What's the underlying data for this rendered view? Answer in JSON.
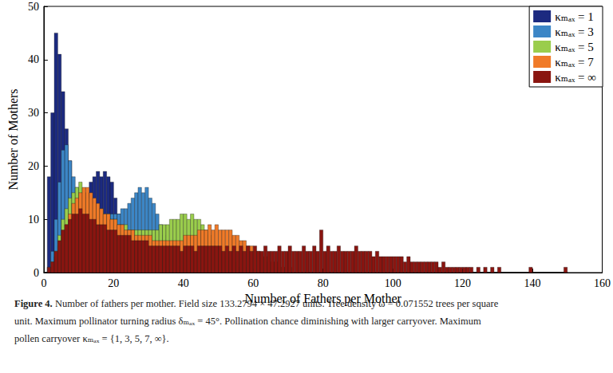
{
  "chart_data": {
    "type": "histogram",
    "x_label": "Number of Fathers per Mother",
    "y_label": "Number of Mothers",
    "caption_label": "Figure 4.",
    "caption": [
      "Number of fathers per mother. Field size 133.2794 × 47.2927 units. Tree density ω = 0.071552 trees per square",
      "unit. Maximum pollinator turning radius δₘₐₓ = 45°. Pollination chance diminishing with larger carryover. Maximum",
      "pollen carryover κₘₐₓ = {1, 3, 5, 7, ∞}."
    ],
    "xlim": [
      0,
      160
    ],
    "xticks": [
      0,
      20,
      40,
      60,
      80,
      100,
      120,
      140,
      160
    ],
    "ylim": [
      0,
      50
    ],
    "yticks": [
      0,
      10,
      20,
      30,
      40,
      50
    ],
    "grid": false,
    "legend": "upper right",
    "bins": [
      0,
      1,
      2,
      3,
      4,
      5,
      6,
      7,
      8,
      9,
      10,
      11,
      12,
      13,
      14,
      15,
      16,
      17,
      18,
      19,
      20,
      21,
      22,
      23,
      24,
      25,
      26,
      27,
      28,
      29,
      30,
      31,
      32,
      33,
      34,
      35,
      36,
      37,
      38,
      39,
      40,
      41,
      42,
      43,
      44,
      45,
      46,
      47,
      48,
      49,
      50,
      51,
      52,
      53,
      54,
      55,
      56,
      57,
      58,
      59,
      60,
      61,
      62,
      63,
      64,
      65,
      66,
      67,
      68,
      69,
      70,
      71,
      72,
      73,
      74,
      75,
      76,
      77,
      78,
      79,
      80,
      81,
      82,
      83,
      84,
      85,
      86,
      87,
      88,
      89,
      90,
      91,
      92,
      93,
      94,
      95,
      96,
      97,
      98,
      99,
      100,
      101,
      102,
      103,
      104,
      105,
      106,
      107,
      108,
      109,
      110,
      111,
      112,
      113,
      114,
      115,
      116,
      117,
      118,
      119,
      120,
      121,
      122,
      123,
      124,
      125,
      126,
      127,
      128,
      129,
      130,
      131,
      132,
      133,
      134,
      135,
      136,
      137,
      138,
      139,
      140,
      141,
      142,
      143,
      144,
      145,
      146,
      147,
      148,
      149,
      150
    ],
    "series": [
      {
        "name": "κₘₐₓ = 1",
        "color": "#1c2a80",
        "values": [
          0,
          18,
          30,
          45,
          41,
          34,
          27,
          21,
          16,
          14,
          13,
          14,
          15,
          17,
          18,
          19,
          18,
          19,
          18,
          17,
          14,
          11,
          7,
          4,
          2,
          1,
          1,
          0,
          0,
          0,
          0,
          0,
          0,
          0,
          0,
          0,
          0,
          0,
          0,
          0,
          0,
          0,
          0,
          0,
          0,
          0,
          0,
          0,
          0,
          0,
          0,
          0,
          0,
          0,
          0,
          0,
          0,
          0,
          0,
          0,
          0,
          0,
          0,
          0,
          0,
          0,
          0,
          0,
          0,
          0,
          0,
          0,
          0,
          0,
          0,
          0,
          0,
          0,
          0,
          0,
          0,
          0,
          0,
          0,
          0,
          0,
          0,
          0,
          0,
          0,
          0,
          0,
          0,
          0,
          0,
          0,
          0,
          0,
          0,
          0,
          0,
          0,
          0,
          0,
          0,
          0,
          0,
          0,
          0,
          0,
          0,
          0,
          0,
          0,
          0,
          0,
          0,
          0,
          0,
          0,
          0,
          0,
          0,
          0,
          0,
          0,
          0,
          0,
          0,
          0,
          0,
          0,
          0,
          0,
          0,
          0,
          0,
          0,
          0,
          0,
          0,
          0,
          0,
          0,
          0,
          0,
          0,
          0,
          0,
          0
        ]
      },
      {
        "name": "κₘₐₓ = 3",
        "color": "#3c86c6",
        "values": [
          0,
          1,
          4,
          10,
          17,
          23,
          24,
          21,
          18,
          16,
          15,
          14,
          13,
          12,
          12,
          12,
          11,
          11,
          11,
          11,
          11,
          11,
          12,
          12,
          13,
          14,
          15,
          16,
          15,
          16,
          14,
          13,
          11,
          9,
          7,
          5,
          4,
          3,
          2,
          1,
          1,
          0,
          0,
          0,
          0,
          0,
          0,
          0,
          0,
          0,
          0,
          0,
          0,
          0,
          0,
          0,
          0,
          0,
          0,
          0,
          0,
          0,
          0,
          0,
          0,
          0,
          0,
          0,
          0,
          0,
          0,
          0,
          0,
          0,
          0,
          0,
          0,
          0,
          0,
          0,
          0,
          0,
          0,
          0,
          0,
          0,
          0,
          0,
          0,
          0,
          0,
          0,
          0,
          0,
          0,
          0,
          0,
          0,
          0,
          0,
          0,
          0,
          0,
          0,
          0,
          0,
          0,
          0,
          0,
          0,
          0,
          0,
          0,
          0,
          0,
          0,
          0,
          0,
          0,
          0,
          0,
          0,
          0,
          0,
          0,
          0,
          0,
          0,
          0,
          0,
          0,
          0,
          0,
          0,
          0,
          0,
          0,
          0,
          0,
          0,
          0,
          0,
          0,
          0,
          0,
          0,
          0,
          0,
          0,
          0
        ]
      },
      {
        "name": "κₘₐₓ = 5",
        "color": "#9acd4c",
        "values": [
          0,
          0,
          2,
          4,
          7,
          10,
          12,
          14,
          15,
          16,
          17,
          15,
          14,
          13,
          13,
          12,
          12,
          11,
          11,
          10,
          10,
          9,
          9,
          9,
          8,
          8,
          8,
          8,
          8,
          8,
          8,
          8,
          8,
          9,
          9,
          9,
          10,
          10,
          10,
          11,
          11,
          10,
          11,
          10,
          10,
          9,
          8,
          7,
          6,
          5,
          4,
          3,
          3,
          2,
          2,
          1,
          1,
          1,
          0,
          0,
          0,
          0,
          0,
          0,
          0,
          0,
          0,
          0,
          0,
          0,
          0,
          0,
          0,
          0,
          0,
          0,
          0,
          0,
          0,
          0,
          0,
          0,
          0,
          0,
          0,
          0,
          0,
          0,
          0,
          0,
          0,
          0,
          0,
          0,
          0,
          0,
          0,
          0,
          0,
          0,
          0,
          0,
          0,
          0,
          0,
          0,
          0,
          0,
          0,
          0,
          0,
          0,
          0,
          0,
          0,
          0,
          0,
          0,
          0,
          0,
          0,
          0,
          0,
          0,
          0,
          0,
          0,
          0,
          0,
          0,
          0,
          0,
          0,
          0,
          0,
          0,
          0,
          0,
          0,
          0,
          0,
          0,
          0,
          0,
          0,
          0,
          0,
          0,
          0,
          0
        ]
      },
      {
        "name": "κₘₐₓ = 7",
        "color": "#f07a28",
        "values": [
          0,
          0,
          1,
          3,
          5,
          7,
          9,
          11,
          13,
          14,
          15,
          16,
          16,
          15,
          14,
          13,
          12,
          11,
          11,
          10,
          10,
          9,
          9,
          8,
          8,
          8,
          7,
          7,
          7,
          7,
          7,
          6,
          6,
          6,
          6,
          6,
          6,
          6,
          6,
          6,
          7,
          7,
          7,
          7,
          8,
          8,
          8,
          9,
          8,
          9,
          8,
          8,
          8,
          8,
          7,
          7,
          6,
          6,
          5,
          5,
          4,
          4,
          3,
          3,
          2,
          2,
          2,
          1,
          1,
          1,
          1,
          0,
          0,
          0,
          0,
          0,
          0,
          0,
          0,
          0,
          0,
          0,
          0,
          0,
          0,
          0,
          0,
          0,
          0,
          0,
          0,
          0,
          0,
          0,
          0,
          0,
          0,
          0,
          0,
          0,
          0,
          0,
          0,
          0,
          0,
          0,
          0,
          0,
          0,
          0,
          0,
          0,
          0,
          0,
          0,
          0,
          0,
          0,
          0,
          0,
          0,
          0,
          0,
          0,
          0,
          0,
          0,
          0,
          0,
          0,
          0,
          0,
          0,
          0,
          0,
          0,
          0,
          0,
          0,
          0,
          0,
          0,
          0,
          0,
          0,
          0,
          0,
          0,
          0,
          0
        ]
      },
      {
        "name": "κₘₐₓ = ∞",
        "color": "#8a1510",
        "values": [
          0,
          1,
          2,
          4,
          6,
          8,
          9,
          10,
          11,
          11,
          12,
          11,
          11,
          10,
          10,
          9,
          9,
          9,
          8,
          8,
          8,
          7,
          7,
          7,
          7,
          6,
          6,
          6,
          6,
          6,
          5,
          5,
          5,
          5,
          5,
          5,
          5,
          5,
          5,
          4,
          5,
          5,
          5,
          4,
          5,
          5,
          5,
          5,
          5,
          5,
          5,
          4,
          5,
          4,
          5,
          4,
          5,
          4,
          5,
          4,
          5,
          4,
          4,
          5,
          4,
          4,
          4,
          5,
          4,
          4,
          5,
          4,
          4,
          4,
          5,
          4,
          4,
          5,
          4,
          8,
          4,
          5,
          4,
          4,
          5,
          4,
          4,
          4,
          4,
          5,
          4,
          4,
          4,
          4,
          3,
          4,
          3,
          3,
          3,
          3,
          3,
          3,
          3,
          2,
          3,
          2,
          2,
          2,
          2,
          2,
          2,
          2,
          2,
          1,
          2,
          1,
          1,
          1,
          1,
          1,
          1,
          1,
          1,
          0,
          1,
          0,
          1,
          0,
          1,
          0,
          1,
          0,
          0,
          0,
          0,
          0,
          0,
          0,
          0,
          1,
          0,
          0,
          0,
          0,
          0,
          0,
          0,
          0,
          0,
          1
        ]
      }
    ]
  }
}
